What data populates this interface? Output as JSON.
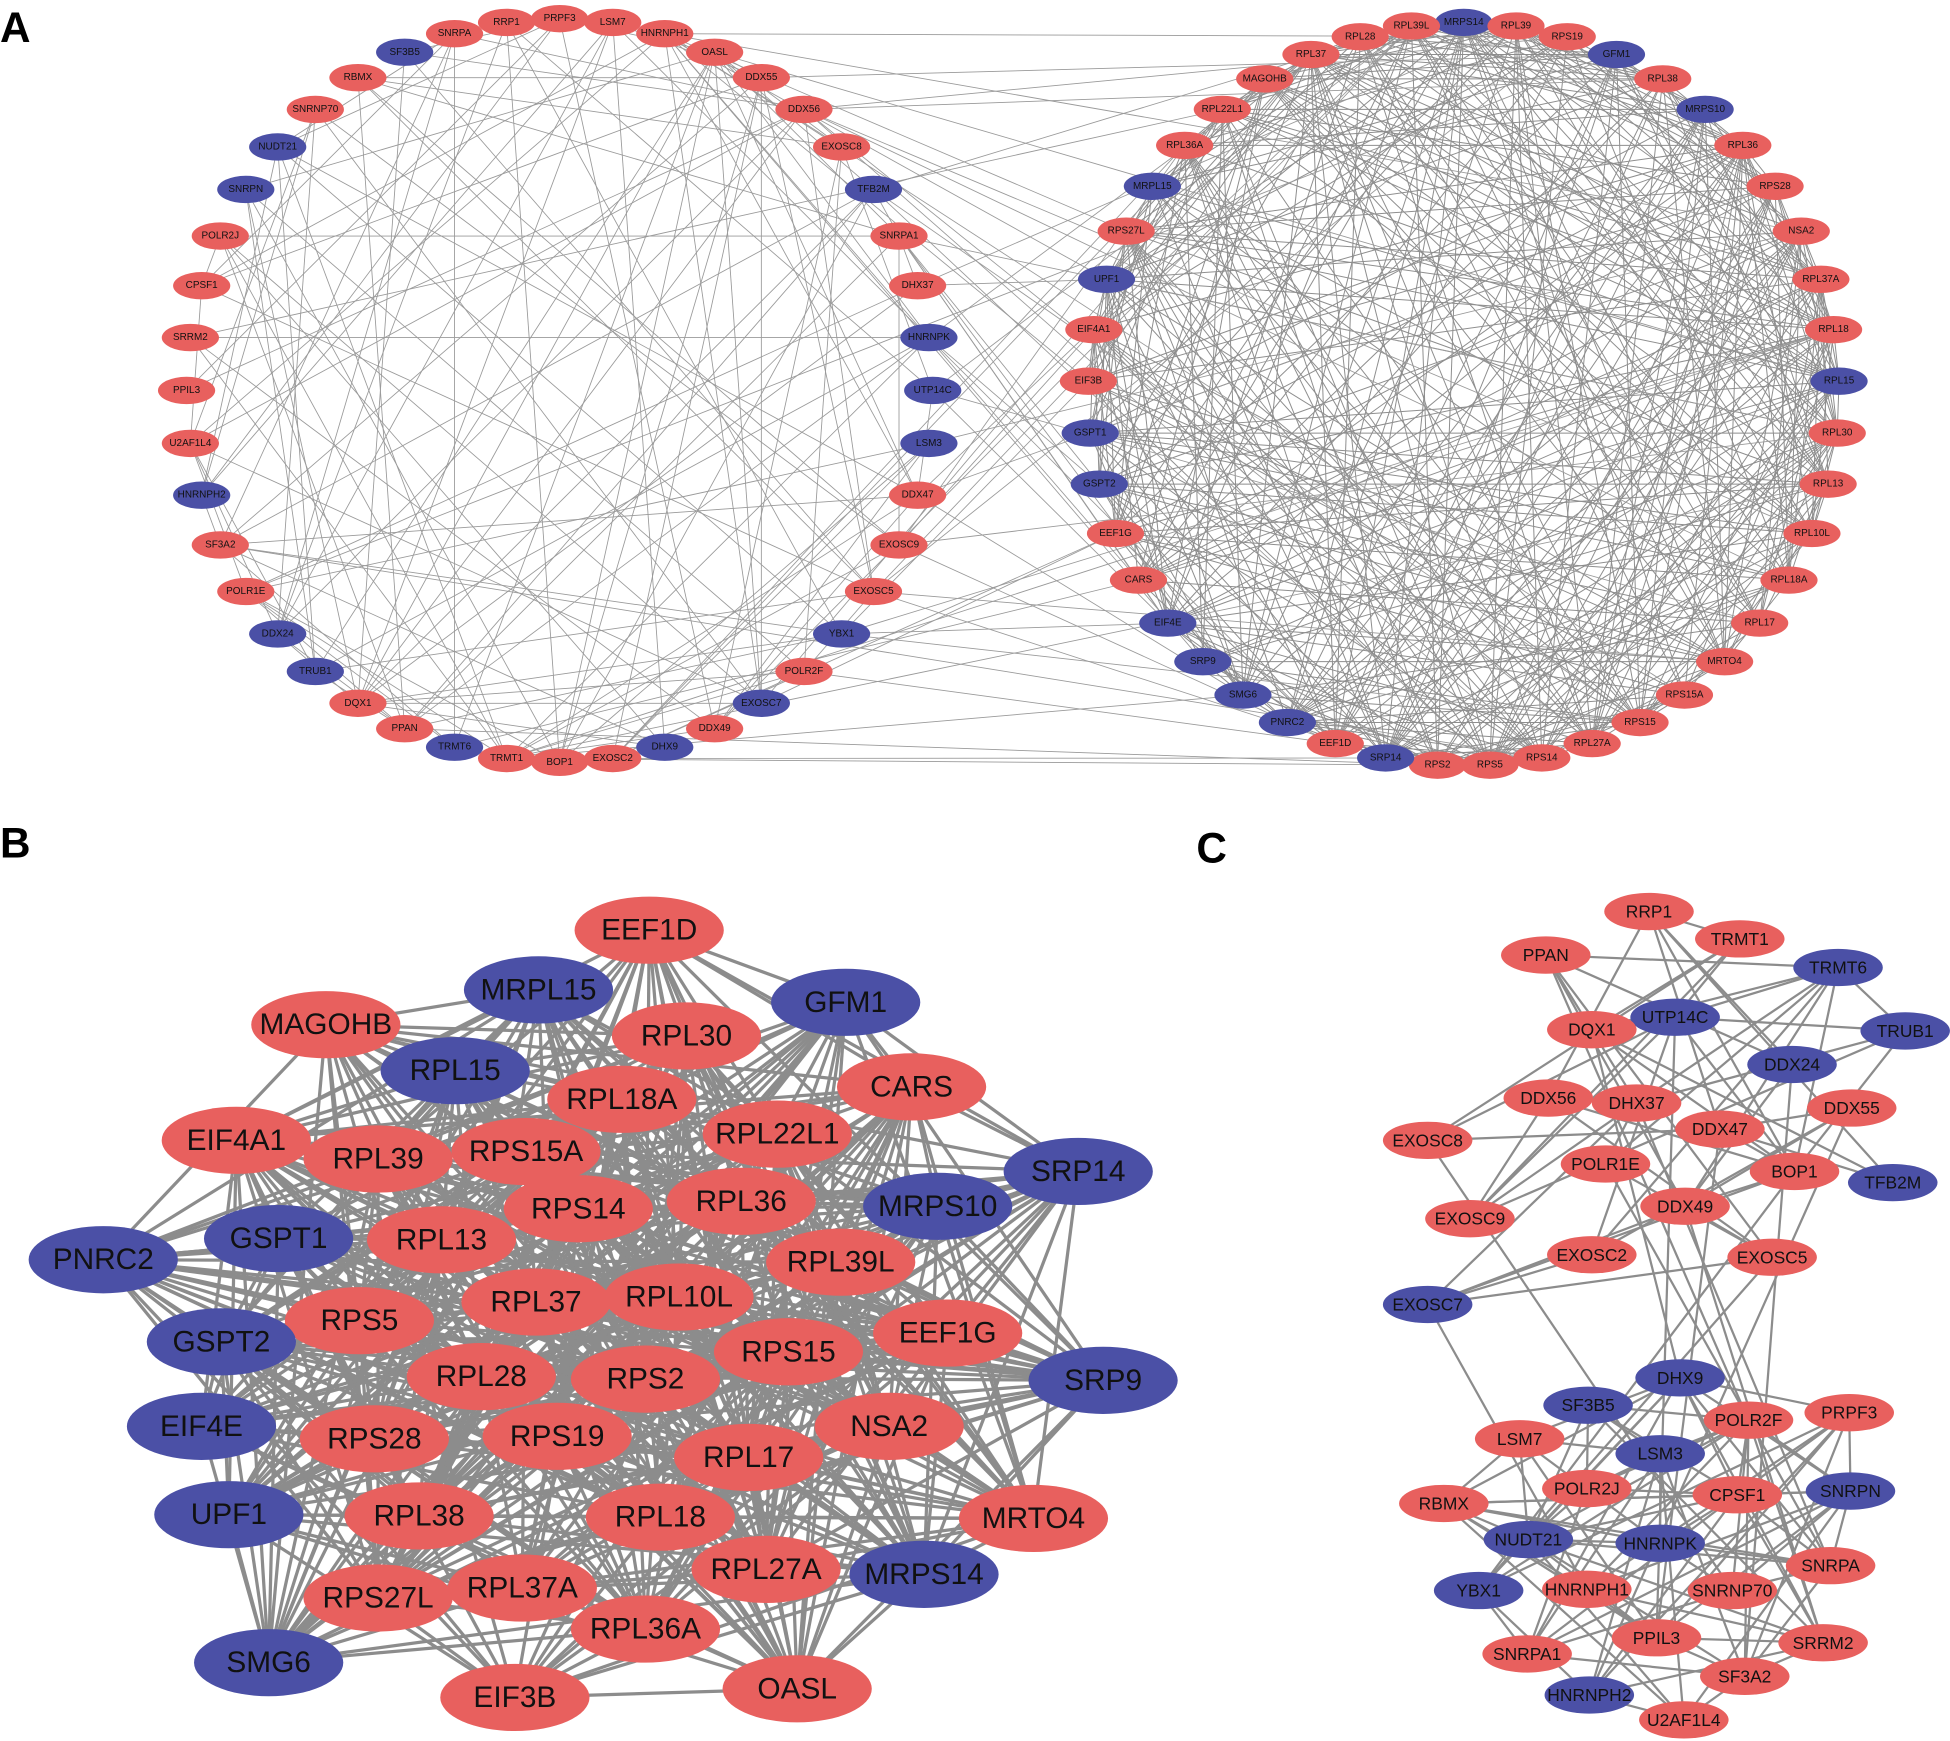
{
  "panel_a": {
    "label": "A",
    "left_nodes": [
      {
        "label": "SNRPA",
        "color": "#e8605e"
      },
      {
        "label": "RRP1",
        "color": "#e8605e"
      },
      {
        "label": "PRPF3",
        "color": "#e8605e"
      },
      {
        "label": "LSM7",
        "color": "#e8605e"
      },
      {
        "label": "HNRNPH1",
        "color": "#e8605e"
      },
      {
        "label": "OASL",
        "color": "#e8605e"
      },
      {
        "label": "DDX55",
        "color": "#e8605e"
      },
      {
        "label": "DDX56",
        "color": "#e8605e"
      },
      {
        "label": "EXOSC8",
        "color": "#e8605e"
      },
      {
        "label": "TFB2M",
        "color": "#4b50a6"
      },
      {
        "label": "SNRPA1",
        "color": "#e8605e"
      },
      {
        "label": "DHX37",
        "color": "#e8605e"
      },
      {
        "label": "HNRNPK",
        "color": "#4b50a6"
      },
      {
        "label": "UTP14C",
        "color": "#4b50a6"
      },
      {
        "label": "LSM3",
        "color": "#4b50a6"
      },
      {
        "label": "DDX47",
        "color": "#e8605e"
      },
      {
        "label": "EXOSC9",
        "color": "#e8605e"
      },
      {
        "label": "EXOSC5",
        "color": "#e8605e"
      },
      {
        "label": "YBX1",
        "color": "#4b50a6"
      },
      {
        "label": "POLR2F",
        "color": "#e8605e"
      },
      {
        "label": "EXOSC7",
        "color": "#4b50a6"
      },
      {
        "label": "DDX49",
        "color": "#e8605e"
      },
      {
        "label": "DHX9",
        "color": "#4b50a6"
      },
      {
        "label": "EXOSC2",
        "color": "#e8605e"
      },
      {
        "label": "BOP1",
        "color": "#e8605e"
      },
      {
        "label": "TRMT1",
        "color": "#e8605e"
      },
      {
        "label": "TRMT6",
        "color": "#4b50a6"
      },
      {
        "label": "PPAN",
        "color": "#e8605e"
      },
      {
        "label": "DQX1",
        "color": "#e8605e"
      },
      {
        "label": "TRUB1",
        "color": "#4b50a6"
      },
      {
        "label": "DDX24",
        "color": "#4b50a6"
      },
      {
        "label": "POLR1E",
        "color": "#e8605e"
      },
      {
        "label": "SF3A2",
        "color": "#e8605e"
      },
      {
        "label": "HNRNPH2",
        "color": "#4b50a6"
      },
      {
        "label": "U2AF1L4",
        "color": "#e8605e"
      },
      {
        "label": "PPIL3",
        "color": "#e8605e"
      },
      {
        "label": "SRRM2",
        "color": "#e8605e"
      },
      {
        "label": "CPSF1",
        "color": "#e8605e"
      },
      {
        "label": "POLR2J",
        "color": "#e8605e"
      },
      {
        "label": "SNRPN",
        "color": "#4b50a6"
      },
      {
        "label": "NUDT21",
        "color": "#4b50a6"
      },
      {
        "label": "SNRNP70",
        "color": "#e8605e"
      },
      {
        "label": "RBMX",
        "color": "#e8605e"
      },
      {
        "label": "SF3B5",
        "color": "#4b50a6"
      }
    ],
    "right_nodes": [
      {
        "label": "MRPS14",
        "color": "#4b50a6"
      },
      {
        "label": "RPL39",
        "color": "#e8605e"
      },
      {
        "label": "RPS19",
        "color": "#e8605e"
      },
      {
        "label": "GFM1",
        "color": "#4b50a6"
      },
      {
        "label": "RPL38",
        "color": "#e8605e"
      },
      {
        "label": "MRPS10",
        "color": "#4b50a6"
      },
      {
        "label": "RPL36",
        "color": "#e8605e"
      },
      {
        "label": "RPS28",
        "color": "#e8605e"
      },
      {
        "label": "NSA2",
        "color": "#e8605e"
      },
      {
        "label": "RPL37A",
        "color": "#e8605e"
      },
      {
        "label": "RPL18",
        "color": "#e8605e"
      },
      {
        "label": "RPL15",
        "color": "#4b50a6"
      },
      {
        "label": "RPL30",
        "color": "#e8605e"
      },
      {
        "label": "RPL13",
        "color": "#e8605e"
      },
      {
        "label": "RPL10L",
        "color": "#e8605e"
      },
      {
        "label": "RPL18A",
        "color": "#e8605e"
      },
      {
        "label": "RPL17",
        "color": "#e8605e"
      },
      {
        "label": "MRTO4",
        "color": "#e8605e"
      },
      {
        "label": "RPS15A",
        "color": "#e8605e"
      },
      {
        "label": "RPS15",
        "color": "#e8605e"
      },
      {
        "label": "RPL27A",
        "color": "#e8605e"
      },
      {
        "label": "RPS14",
        "color": "#e8605e"
      },
      {
        "label": "RPS5",
        "color": "#e8605e"
      },
      {
        "label": "RPS2",
        "color": "#e8605e"
      },
      {
        "label": "SRP14",
        "color": "#4b50a6"
      },
      {
        "label": "EEF1D",
        "color": "#e8605e"
      },
      {
        "label": "PNRC2",
        "color": "#4b50a6"
      },
      {
        "label": "SMG6",
        "color": "#4b50a6"
      },
      {
        "label": "SRP9",
        "color": "#4b50a6"
      },
      {
        "label": "EIF4E",
        "color": "#4b50a6"
      },
      {
        "label": "CARS",
        "color": "#e8605e"
      },
      {
        "label": "EEF1G",
        "color": "#e8605e"
      },
      {
        "label": "GSPT2",
        "color": "#4b50a6"
      },
      {
        "label": "GSPT1",
        "color": "#4b50a6"
      },
      {
        "label": "EIF3B",
        "color": "#e8605e"
      },
      {
        "label": "EIF4A1",
        "color": "#e8605e"
      },
      {
        "label": "UPF1",
        "color": "#4b50a6"
      },
      {
        "label": "RPS27L",
        "color": "#e8605e"
      },
      {
        "label": "MRPL15",
        "color": "#4b50a6"
      },
      {
        "label": "RPL36A",
        "color": "#e8605e"
      },
      {
        "label": "RPL22L1",
        "color": "#e8605e"
      },
      {
        "label": "MAGOHB",
        "color": "#e8605e"
      },
      {
        "label": "RPL37",
        "color": "#e8605e"
      },
      {
        "label": "RPL28",
        "color": "#e8605e"
      },
      {
        "label": "RPL39L",
        "color": "#e8605e"
      }
    ]
  },
  "panel_b": {
    "label": "B",
    "nodes": [
      {
        "label": "EEF1D",
        "color": "#e8605e"
      },
      {
        "label": "MRPL15",
        "color": "#4b50a6"
      },
      {
        "label": "GFM1",
        "color": "#4b50a6"
      },
      {
        "label": "MAGOHB",
        "color": "#e8605e"
      },
      {
        "label": "RPL30",
        "color": "#e8605e"
      },
      {
        "label": "RPL15",
        "color": "#4b50a6"
      },
      {
        "label": "CARS",
        "color": "#e8605e"
      },
      {
        "label": "RPL18A",
        "color": "#e8605e"
      },
      {
        "label": "EIF4A1",
        "color": "#e8605e"
      },
      {
        "label": "RPL39",
        "color": "#e8605e"
      },
      {
        "label": "RPS15A",
        "color": "#e8605e"
      },
      {
        "label": "RPL22L1",
        "color": "#e8605e"
      },
      {
        "label": "SRP14",
        "color": "#4b50a6"
      },
      {
        "label": "RPS14",
        "color": "#e8605e"
      },
      {
        "label": "RPL36",
        "color": "#e8605e"
      },
      {
        "label": "MRPS10",
        "color": "#4b50a6"
      },
      {
        "label": "PNRC2",
        "color": "#4b50a6"
      },
      {
        "label": "GSPT1",
        "color": "#4b50a6"
      },
      {
        "label": "RPL13",
        "color": "#e8605e"
      },
      {
        "label": "RPL39L",
        "color": "#e8605e"
      },
      {
        "label": "RPL37",
        "color": "#e8605e"
      },
      {
        "label": "RPL10L",
        "color": "#e8605e"
      },
      {
        "label": "RPS5",
        "color": "#e8605e"
      },
      {
        "label": "EEF1G",
        "color": "#e8605e"
      },
      {
        "label": "GSPT2",
        "color": "#4b50a6"
      },
      {
        "label": "RPL28",
        "color": "#e8605e"
      },
      {
        "label": "RPS2",
        "color": "#e8605e"
      },
      {
        "label": "RPS15",
        "color": "#e8605e"
      },
      {
        "label": "SRP9",
        "color": "#4b50a6"
      },
      {
        "label": "NSA2",
        "color": "#e8605e"
      },
      {
        "label": "EIF4E",
        "color": "#4b50a6"
      },
      {
        "label": "RPS28",
        "color": "#e8605e"
      },
      {
        "label": "RPS19",
        "color": "#e8605e"
      },
      {
        "label": "RPL17",
        "color": "#e8605e"
      },
      {
        "label": "UPF1",
        "color": "#4b50a6"
      },
      {
        "label": "RPL38",
        "color": "#e8605e"
      },
      {
        "label": "RPL18",
        "color": "#e8605e"
      },
      {
        "label": "MRTO4",
        "color": "#e8605e"
      },
      {
        "label": "RPL27A",
        "color": "#e8605e"
      },
      {
        "label": "MRPS14",
        "color": "#4b50a6"
      },
      {
        "label": "RPS27L",
        "color": "#e8605e"
      },
      {
        "label": "RPL37A",
        "color": "#e8605e"
      },
      {
        "label": "RPL36A",
        "color": "#e8605e"
      },
      {
        "label": "SMG6",
        "color": "#4b50a6"
      },
      {
        "label": "EIF3B",
        "color": "#e8605e"
      },
      {
        "label": "OASL",
        "color": "#e8605e"
      }
    ]
  },
  "panel_c": {
    "label": "C",
    "nodes": [
      {
        "label": "RRP1",
        "color": "#e8605e"
      },
      {
        "label": "TRMT1",
        "color": "#e8605e"
      },
      {
        "label": "PPAN",
        "color": "#e8605e"
      },
      {
        "label": "TRMT6",
        "color": "#4b50a6"
      },
      {
        "label": "UTP14C",
        "color": "#4b50a6"
      },
      {
        "label": "DQX1",
        "color": "#e8605e"
      },
      {
        "label": "TRUB1",
        "color": "#4b50a6"
      },
      {
        "label": "DDX24",
        "color": "#4b50a6"
      },
      {
        "label": "DDX56",
        "color": "#e8605e"
      },
      {
        "label": "DHX37",
        "color": "#e8605e"
      },
      {
        "label": "DDX55",
        "color": "#e8605e"
      },
      {
        "label": "DDX47",
        "color": "#e8605e"
      },
      {
        "label": "EXOSC8",
        "color": "#e8605e"
      },
      {
        "label": "POLR1E",
        "color": "#e8605e"
      },
      {
        "label": "BOP1",
        "color": "#e8605e"
      },
      {
        "label": "TFB2M",
        "color": "#4b50a6"
      },
      {
        "label": "DDX49",
        "color": "#e8605e"
      },
      {
        "label": "EXOSC9",
        "color": "#e8605e"
      },
      {
        "label": "EXOSC2",
        "color": "#e8605e"
      },
      {
        "label": "EXOSC5",
        "color": "#e8605e"
      },
      {
        "label": "EXOSC7",
        "color": "#4b50a6"
      },
      {
        "label": "DHX9",
        "color": "#4b50a6"
      },
      {
        "label": "SF3B5",
        "color": "#4b50a6"
      },
      {
        "label": "PRPF3",
        "color": "#e8605e"
      },
      {
        "label": "LSM7",
        "color": "#e8605e"
      },
      {
        "label": "POLR2F",
        "color": "#e8605e"
      },
      {
        "label": "LSM3",
        "color": "#4b50a6"
      },
      {
        "label": "RBMX",
        "color": "#e8605e"
      },
      {
        "label": "POLR2J",
        "color": "#e8605e"
      },
      {
        "label": "CPSF1",
        "color": "#e8605e"
      },
      {
        "label": "SNRPN",
        "color": "#4b50a6"
      },
      {
        "label": "NUDT21",
        "color": "#4b50a6"
      },
      {
        "label": "HNRNPK",
        "color": "#4b50a6"
      },
      {
        "label": "SNRPA",
        "color": "#e8605e"
      },
      {
        "label": "YBX1",
        "color": "#4b50a6"
      },
      {
        "label": "HNRNPH1",
        "color": "#e8605e"
      },
      {
        "label": "SNRNP70",
        "color": "#e8605e"
      },
      {
        "label": "PPIL3",
        "color": "#e8605e"
      },
      {
        "label": "SRRM2",
        "color": "#e8605e"
      },
      {
        "label": "SNRPA1",
        "color": "#e8605e"
      },
      {
        "label": "SF3A2",
        "color": "#e8605e"
      },
      {
        "label": "HNRNPH2",
        "color": "#4b50a6"
      },
      {
        "label": "U2AF1L4",
        "color": "#e8605e"
      }
    ]
  }
}
